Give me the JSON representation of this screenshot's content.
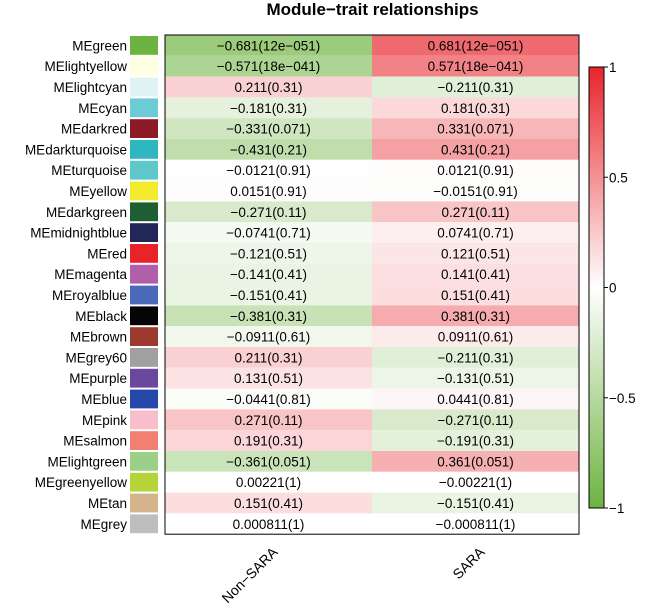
{
  "chart_data": {
    "type": "heatmap",
    "title": "Module−trait relationships",
    "columns": [
      "Non−SARA",
      "SARA"
    ],
    "rows": [
      {
        "name": "MEgreen",
        "module_color": "#6db33f",
        "values": [
          -0.68,
          0.68
        ],
        "labels": [
          "−0.681(12e−051)",
          "0.681(12e−051)"
        ]
      },
      {
        "name": "MElightyellow",
        "module_color": "#fefee0",
        "values": [
          -0.57,
          0.57
        ],
        "labels": [
          "−0.571(18e−041)",
          "0.571(18e−041)"
        ]
      },
      {
        "name": "MElightcyan",
        "module_color": "#dff3f5",
        "values": [
          0.21,
          -0.21
        ],
        "labels": [
          "0.211(0.31)",
          "−0.211(0.31)"
        ]
      },
      {
        "name": "MEcyan",
        "module_color": "#6ccbd6",
        "values": [
          -0.18,
          0.18
        ],
        "labels": [
          "−0.181(0.31)",
          "0.181(0.31)"
        ]
      },
      {
        "name": "MEdarkred",
        "module_color": "#8b1a24",
        "values": [
          -0.33,
          0.33
        ],
        "labels": [
          "−0.331(0.071)",
          "0.331(0.071)"
        ]
      },
      {
        "name": "MEdarkturquoise",
        "module_color": "#2fb7c1",
        "values": [
          -0.43,
          0.43
        ],
        "labels": [
          "−0.431(0.21)",
          "0.431(0.21)"
        ]
      },
      {
        "name": "MEturquoise",
        "module_color": "#5ec8c8",
        "values": [
          -0.012,
          0.012
        ],
        "labels": [
          "−0.0121(0.91)",
          "0.0121(0.91)"
        ]
      },
      {
        "name": "MEyellow",
        "module_color": "#f2ea2e",
        "values": [
          0.015,
          -0.015
        ],
        "labels": [
          "0.0151(0.91)",
          "−0.0151(0.91)"
        ]
      },
      {
        "name": "MEdarkgreen",
        "module_color": "#1d5e33",
        "values": [
          -0.27,
          0.27
        ],
        "labels": [
          "−0.271(0.11)",
          "0.271(0.11)"
        ]
      },
      {
        "name": "MEmidnightblue",
        "module_color": "#232757",
        "values": [
          -0.074,
          0.074
        ],
        "labels": [
          "−0.0741(0.71)",
          "0.0741(0.71)"
        ]
      },
      {
        "name": "MEred",
        "module_color": "#e8242a",
        "values": [
          -0.12,
          0.12
        ],
        "labels": [
          "−0.121(0.51)",
          "0.121(0.51)"
        ]
      },
      {
        "name": "MEmagenta",
        "module_color": "#b05fa8",
        "values": [
          -0.14,
          0.14
        ],
        "labels": [
          "−0.141(0.41)",
          "0.141(0.41)"
        ]
      },
      {
        "name": "MEroyalblue",
        "module_color": "#4c6ab9",
        "values": [
          -0.15,
          0.15
        ],
        "labels": [
          "−0.151(0.41)",
          "0.151(0.41)"
        ]
      },
      {
        "name": "MEblack",
        "module_color": "#050505",
        "values": [
          -0.38,
          0.38
        ],
        "labels": [
          "−0.381(0.31)",
          "0.381(0.31)"
        ]
      },
      {
        "name": "MEbrown",
        "module_color": "#9c3a30",
        "values": [
          -0.091,
          0.091
        ],
        "labels": [
          "−0.0911(0.61)",
          "0.0911(0.61)"
        ]
      },
      {
        "name": "MEgrey60",
        "module_color": "#a0a0a0",
        "values": [
          0.21,
          -0.21
        ],
        "labels": [
          "0.211(0.31)",
          "−0.211(0.31)"
        ]
      },
      {
        "name": "MEpurple",
        "module_color": "#6c479e",
        "values": [
          0.13,
          -0.13
        ],
        "labels": [
          "0.131(0.51)",
          "−0.131(0.51)"
        ]
      },
      {
        "name": "MEblue",
        "module_color": "#2448a8",
        "values": [
          -0.044,
          0.044
        ],
        "labels": [
          "−0.0441(0.81)",
          "0.0441(0.81)"
        ]
      },
      {
        "name": "MEpink",
        "module_color": "#f7bfcc",
        "values": [
          0.27,
          -0.27
        ],
        "labels": [
          "0.271(0.11)",
          "−0.271(0.11)"
        ]
      },
      {
        "name": "MEsalmon",
        "module_color": "#f08072",
        "values": [
          0.19,
          -0.19
        ],
        "labels": [
          "0.191(0.31)",
          "−0.191(0.31)"
        ]
      },
      {
        "name": "MElightgreen",
        "module_color": "#9dd087",
        "values": [
          -0.36,
          0.36
        ],
        "labels": [
          "−0.361(0.051)",
          "0.361(0.051)"
        ]
      },
      {
        "name": "MEgreenyellow",
        "module_color": "#b5d33a",
        "values": [
          0.0022,
          -0.0022
        ],
        "labels": [
          "0.00221(1)",
          "−0.00221(1)"
        ]
      },
      {
        "name": "MEtan",
        "module_color": "#d3b48c",
        "values": [
          0.15,
          -0.15
        ],
        "labels": [
          "0.151(0.41)",
          "−0.151(0.41)"
        ]
      },
      {
        "name": "MEgrey",
        "module_color": "#bebebe",
        "values": [
          0.00081,
          -0.00081
        ],
        "labels": [
          "0.000811(1)",
          "−0.000811(1)"
        ]
      }
    ],
    "colorscale": {
      "min": -1,
      "max": 1,
      "low_color": "#6db33f",
      "mid_color": "#ffffff",
      "high_color": "#e8242a",
      "ticks": [
        1,
        0.5,
        0,
        -0.5,
        -1
      ],
      "tick_labels": [
        "1",
        "0.5",
        "0",
        "−0.5",
        "−1"
      ]
    }
  }
}
